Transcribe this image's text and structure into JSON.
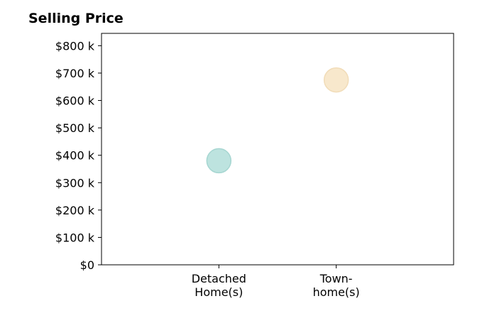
{
  "chart_data": {
    "type": "scatter",
    "title": "Selling Price",
    "xlabel": "",
    "ylabel": "",
    "categories": [
      [
        "Detached",
        "Home(s)"
      ],
      [
        "Town-",
        "home(s)"
      ]
    ],
    "values": [
      380,
      675
    ],
    "colors": [
      "#bde3df",
      "#f8e8cc"
    ],
    "edge_colors": [
      "#a6d6d1",
      "#f1dcb8"
    ],
    "y_ticks": [
      0,
      100,
      200,
      300,
      400,
      500,
      600,
      700,
      800
    ],
    "y_tick_labels": [
      "$0",
      "$100 k",
      "$200 k",
      "$300 k",
      "$400 k",
      "$500 k",
      "$600 k",
      "$700 k",
      "$800 k"
    ],
    "ylim": [
      0,
      845
    ],
    "grid": false,
    "legend": "none"
  }
}
